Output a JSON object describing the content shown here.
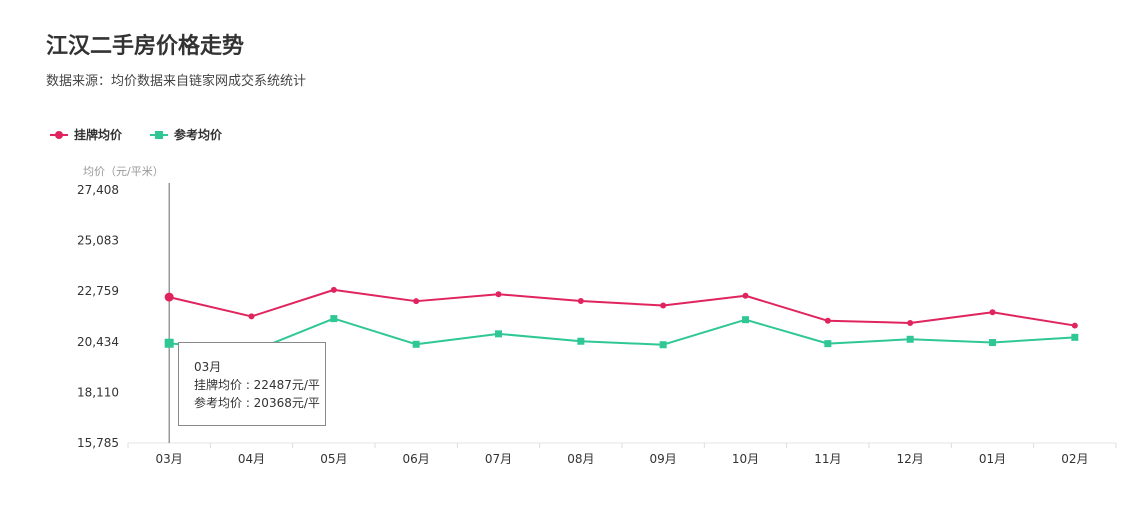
{
  "chart_data": {
    "type": "line",
    "title": "江汉二手房价格走势",
    "subtitle": "数据来源：均价数据来自链家网成交系统统计",
    "ylabel": "均价（元/平米）",
    "categories": [
      "03月",
      "04月",
      "05月",
      "06月",
      "07月",
      "08月",
      "09月",
      "10月",
      "11月",
      "12月",
      "01月",
      "02月"
    ],
    "ylim": [
      15785,
      27408
    ],
    "yticks": [
      15785,
      18110,
      20434,
      22759,
      25083,
      27408
    ],
    "ytick_labels": [
      "15,785",
      "18,110",
      "20,434",
      "22,759",
      "25,083",
      "27,408"
    ],
    "legend_position": "top-left",
    "grid": false,
    "series": [
      {
        "name": "挂牌均价",
        "color": "#e0245e",
        "marker": "circle",
        "values": [
          22487,
          21600,
          22820,
          22300,
          22620,
          22310,
          22100,
          22550,
          21400,
          21300,
          21790,
          21180
        ]
      },
      {
        "name": "参考均价",
        "color": "#2ec795",
        "marker": "square",
        "values": [
          20368,
          19980,
          21500,
          20320,
          20800,
          20460,
          20300,
          21450,
          20350,
          20550,
          20400,
          20640
        ]
      }
    ],
    "tooltip": {
      "category": "03月",
      "lines": [
        "挂牌均价 : 22487元/平",
        "参考均价 : 20368元/平"
      ]
    }
  }
}
